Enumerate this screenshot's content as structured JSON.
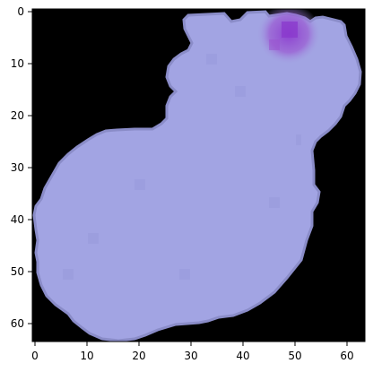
{
  "image": {
    "kind": "matplotlib-imshow",
    "pixel_grid": [
      64,
      64
    ],
    "description_colors": {
      "background": "#000000",
      "cell_fill": "#a2a4e3",
      "cell_fill_dark": "#9597d9",
      "stain_accent": "#9b56d4",
      "axes_frame": "#000000"
    }
  },
  "axes": {
    "x_ticks": [
      "0",
      "10",
      "20",
      "30",
      "40",
      "50",
      "60"
    ],
    "y_ticks": [
      "0",
      "10",
      "20",
      "30",
      "40",
      "50",
      "60"
    ]
  }
}
